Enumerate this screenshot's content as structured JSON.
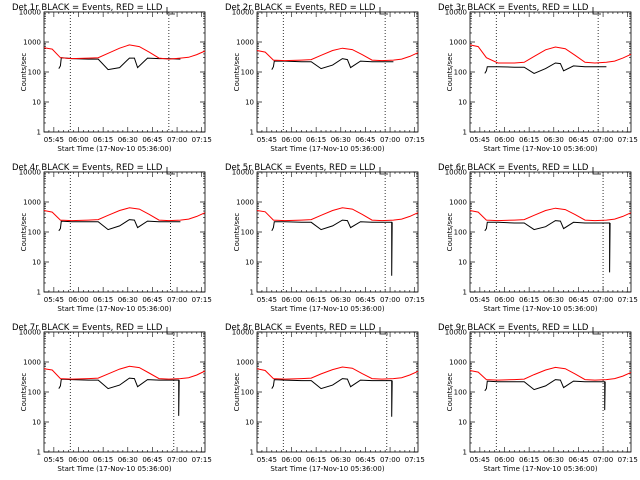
{
  "x_tick_labels": [
    "05:45",
    "06:00",
    "06:15",
    "06:30",
    "06:45",
    "07:00",
    "07:15"
  ],
  "y_tick_labels": [
    "1",
    "10",
    "100",
    "1000",
    "10000"
  ],
  "xlabel": "Start Time (17-Nov-10 05:36:00)",
  "ylabel": "Counts/sec",
  "colors": {
    "events": "#000000",
    "lld": "#ff0000"
  },
  "chart_data": [
    {
      "type": "line",
      "title": "Det 1r BLACK = Events, RED = LLD",
      "xlabel": "Start Time (17-Nov-10 05:36:00)",
      "ylabel": "Counts/sec",
      "x_unit": "minutes after 05:36:00",
      "xlim": [
        3,
        101
      ],
      "ylim": [
        1,
        10000
      ],
      "yscale": "log",
      "series": [
        {
          "name": "Events",
          "color": "#000000",
          "x": [
            12,
            13,
            13.5,
            20,
            30,
            36,
            42,
            49,
            55,
            58,
            60,
            66,
            73,
            79,
            86
          ],
          "y": [
            130,
            160,
            300,
            280,
            270,
            270,
            120,
            140,
            290,
            290,
            140,
            290,
            280,
            280,
            270
          ]
        },
        {
          "name": "LLD",
          "color": "#ff0000",
          "x": [
            3,
            8,
            13,
            20,
            30,
            36,
            42,
            49,
            55,
            61,
            67,
            73,
            79,
            86,
            91,
            96,
            101
          ],
          "y": [
            640,
            580,
            300,
            280,
            290,
            300,
            420,
            620,
            800,
            700,
            460,
            290,
            270,
            290,
            310,
            380,
            500
          ]
        }
      ],
      "vlines": [
        19,
        79
      ]
    },
    {
      "type": "line",
      "title": "Det 2r BLACK = Events, RED = LLD",
      "xlabel": "Start Time (17-Nov-10 05:36:00)",
      "ylabel": "Counts/sec",
      "x_unit": "minutes after 05:36:00",
      "xlim": [
        3,
        101
      ],
      "ylim": [
        1,
        10000
      ],
      "yscale": "log",
      "series": [
        {
          "name": "Events",
          "color": "#000000",
          "x": [
            12,
            13,
            13.5,
            20,
            30,
            36,
            42,
            49,
            55,
            58,
            60,
            66,
            73,
            79,
            86
          ],
          "y": [
            120,
            150,
            230,
            230,
            220,
            220,
            130,
            170,
            280,
            260,
            140,
            230,
            220,
            220,
            220
          ]
        },
        {
          "name": "LLD",
          "color": "#ff0000",
          "x": [
            3,
            8,
            13,
            20,
            30,
            36,
            42,
            49,
            55,
            61,
            67,
            73,
            79,
            86,
            91,
            96,
            101
          ],
          "y": [
            520,
            460,
            250,
            240,
            250,
            260,
            360,
            520,
            620,
            560,
            380,
            250,
            240,
            250,
            270,
            330,
            440
          ]
        }
      ],
      "vlines": [
        19,
        81
      ]
    },
    {
      "type": "line",
      "title": "Det 3r BLACK = Events, RED = LLD",
      "xlabel": "Start Time (17-Nov-10 05:36:00)",
      "ylabel": "Counts/sec",
      "x_unit": "minutes after 05:36:00",
      "xlim": [
        3,
        101
      ],
      "ylim": [
        1,
        10000
      ],
      "yscale": "log",
      "series": [
        {
          "name": "Events",
          "color": "#000000",
          "x": [
            12,
            13,
            13.5,
            20,
            30,
            36,
            42,
            49,
            55,
            58,
            60,
            66,
            73,
            79,
            86
          ],
          "y": [
            90,
            110,
            150,
            150,
            145,
            145,
            90,
            130,
            200,
            190,
            110,
            160,
            150,
            150,
            150
          ]
        },
        {
          "name": "LLD",
          "color": "#ff0000",
          "x": [
            3,
            8,
            13,
            20,
            30,
            36,
            42,
            49,
            55,
            61,
            67,
            73,
            79,
            86,
            91,
            96,
            101
          ],
          "y": [
            800,
            700,
            300,
            200,
            200,
            210,
            330,
            550,
            680,
            600,
            360,
            210,
            200,
            210,
            230,
            290,
            390
          ]
        }
      ],
      "vlines": [
        19,
        81
      ]
    },
    {
      "type": "line",
      "title": "Det 4r BLACK = Events, RED = LLD",
      "xlabel": "Start Time (17-Nov-10 05:36:00)",
      "ylabel": "Counts/sec",
      "x_unit": "minutes after 05:36:00",
      "xlim": [
        3,
        101
      ],
      "ylim": [
        1,
        10000
      ],
      "yscale": "log",
      "series": [
        {
          "name": "Events",
          "color": "#000000",
          "x": [
            12,
            13,
            13.5,
            20,
            30,
            36,
            42,
            49,
            55,
            58,
            60,
            66,
            73,
            79,
            86
          ],
          "y": [
            110,
            130,
            230,
            220,
            220,
            220,
            120,
            160,
            260,
            250,
            140,
            230,
            220,
            220,
            220
          ]
        },
        {
          "name": "LLD",
          "color": "#ff0000",
          "x": [
            3,
            8,
            13,
            20,
            30,
            36,
            42,
            49,
            55,
            61,
            67,
            73,
            79,
            86,
            91,
            96,
            101
          ],
          "y": [
            520,
            460,
            250,
            240,
            250,
            260,
            360,
            520,
            640,
            580,
            390,
            250,
            240,
            250,
            270,
            330,
            440
          ]
        }
      ],
      "vlines": [
        19,
        80
      ]
    },
    {
      "type": "line",
      "title": "Det 5r BLACK = Events, RED = LLD",
      "xlabel": "Start Time (17-Nov-10 05:36:00)",
      "ylabel": "Counts/sec",
      "x_unit": "minutes after 05:36:00",
      "xlim": [
        3,
        101
      ],
      "ylim": [
        1,
        10000
      ],
      "yscale": "log",
      "series": [
        {
          "name": "Events",
          "color": "#000000",
          "x": [
            12,
            13,
            13.5,
            20,
            30,
            36,
            42,
            49,
            55,
            58,
            60,
            66,
            73,
            79,
            83,
            85,
            85,
            85.3
          ],
          "y": [
            110,
            140,
            220,
            220,
            210,
            210,
            120,
            160,
            250,
            240,
            140,
            220,
            210,
            210,
            210,
            210,
            3.5,
            210
          ]
        },
        {
          "name": "LLD",
          "color": "#ff0000",
          "x": [
            3,
            8,
            13,
            20,
            30,
            36,
            42,
            49,
            55,
            61,
            67,
            73,
            79,
            86,
            91,
            96,
            101
          ],
          "y": [
            520,
            470,
            250,
            240,
            250,
            260,
            360,
            520,
            640,
            580,
            390,
            250,
            240,
            250,
            270,
            330,
            440
          ]
        }
      ],
      "vlines": [
        19,
        81
      ]
    },
    {
      "type": "line",
      "title": "Det 6r BLACK = Events, RED = LLD",
      "xlabel": "Start Time (17-Nov-10 05:36:00)",
      "ylabel": "Counts/sec",
      "x_unit": "minutes after 05:36:00",
      "xlim": [
        3,
        101
      ],
      "ylim": [
        1,
        10000
      ],
      "yscale": "log",
      "series": [
        {
          "name": "Events",
          "color": "#000000",
          "x": [
            12,
            13,
            13.5,
            20,
            30,
            36,
            42,
            49,
            55,
            58,
            60,
            66,
            73,
            79,
            85,
            88,
            88,
            88.3
          ],
          "y": [
            110,
            130,
            210,
            210,
            200,
            200,
            120,
            150,
            240,
            230,
            130,
            210,
            200,
            200,
            200,
            200,
            4.5,
            200
          ]
        },
        {
          "name": "LLD",
          "color": "#ff0000",
          "x": [
            3,
            8,
            13,
            20,
            30,
            36,
            42,
            49,
            55,
            61,
            67,
            73,
            79,
            86,
            91,
            96,
            101
          ],
          "y": [
            520,
            460,
            250,
            240,
            250,
            260,
            360,
            520,
            620,
            560,
            380,
            250,
            240,
            250,
            270,
            330,
            440
          ]
        }
      ],
      "vlines": [
        19,
        84
      ]
    },
    {
      "type": "line",
      "title": "Det 7r BLACK = Events, RED = LLD",
      "xlabel": "Start Time (17-Nov-10 05:36:00)",
      "ylabel": "Counts/sec",
      "x_unit": "minutes after 05:36:00",
      "xlim": [
        3,
        101
      ],
      "ylim": [
        1,
        10000
      ],
      "yscale": "log",
      "series": [
        {
          "name": "Events",
          "color": "#000000",
          "x": [
            12,
            13,
            13.5,
            20,
            30,
            36,
            42,
            49,
            55,
            58,
            60,
            66,
            73,
            79,
            83,
            85,
            85,
            85.3
          ],
          "y": [
            130,
            160,
            270,
            260,
            250,
            250,
            130,
            170,
            290,
            280,
            150,
            260,
            250,
            250,
            250,
            250,
            16,
            250
          ]
        },
        {
          "name": "LLD",
          "color": "#ff0000",
          "x": [
            3,
            8,
            13,
            20,
            30,
            36,
            42,
            49,
            55,
            61,
            67,
            73,
            79,
            86,
            91,
            96,
            101
          ],
          "y": [
            600,
            540,
            280,
            270,
            280,
            290,
            400,
            580,
            720,
            650,
            430,
            280,
            270,
            280,
            300,
            370,
            500
          ]
        }
      ],
      "vlines": [
        19,
        82
      ]
    },
    {
      "type": "line",
      "title": "Det 8r BLACK = Events, RED = LLD",
      "xlabel": "Start Time (17-Nov-10 05:36:00)",
      "ylabel": "Counts/sec",
      "x_unit": "minutes after 05:36:00",
      "xlim": [
        3,
        101
      ],
      "ylim": [
        1,
        10000
      ],
      "yscale": "log",
      "series": [
        {
          "name": "Events",
          "color": "#000000",
          "x": [
            12,
            13,
            13.5,
            20,
            30,
            36,
            42,
            49,
            55,
            58,
            60,
            66,
            73,
            79,
            83,
            85,
            85,
            85.3
          ],
          "y": [
            130,
            160,
            260,
            250,
            240,
            240,
            130,
            170,
            280,
            270,
            150,
            250,
            240,
            240,
            240,
            240,
            15,
            240
          ]
        },
        {
          "name": "LLD",
          "color": "#ff0000",
          "x": [
            3,
            8,
            13,
            20,
            30,
            36,
            42,
            49,
            55,
            61,
            67,
            73,
            79,
            86,
            91,
            96,
            101
          ],
          "y": [
            600,
            520,
            280,
            270,
            280,
            290,
            400,
            560,
            680,
            620,
            410,
            280,
            270,
            280,
            300,
            370,
            490
          ]
        }
      ],
      "vlines": [
        19,
        82
      ]
    },
    {
      "type": "line",
      "title": "Det 9r BLACK = Events, RED = LLD",
      "xlabel": "Start Time (17-Nov-10 05:36:00)",
      "ylabel": "Counts/sec",
      "x_unit": "minutes after 05:36:00",
      "xlim": [
        3,
        101
      ],
      "ylim": [
        1,
        10000
      ],
      "yscale": "log",
      "series": [
        {
          "name": "Events",
          "color": "#000000",
          "x": [
            12,
            13,
            13.5,
            20,
            30,
            36,
            42,
            49,
            55,
            58,
            60,
            66,
            73,
            79,
            83,
            85,
            85,
            85.3
          ],
          "y": [
            110,
            130,
            230,
            220,
            220,
            220,
            120,
            160,
            260,
            250,
            140,
            230,
            220,
            220,
            220,
            220,
            25,
            220
          ]
        },
        {
          "name": "LLD",
          "color": "#ff0000",
          "x": [
            3,
            8,
            13,
            20,
            30,
            36,
            42,
            49,
            55,
            61,
            67,
            73,
            79,
            86,
            91,
            96,
            101
          ],
          "y": [
            520,
            460,
            260,
            250,
            260,
            270,
            380,
            540,
            660,
            600,
            400,
            260,
            250,
            260,
            280,
            340,
            450
          ]
        }
      ],
      "vlines": [
        19,
        84
      ]
    }
  ]
}
